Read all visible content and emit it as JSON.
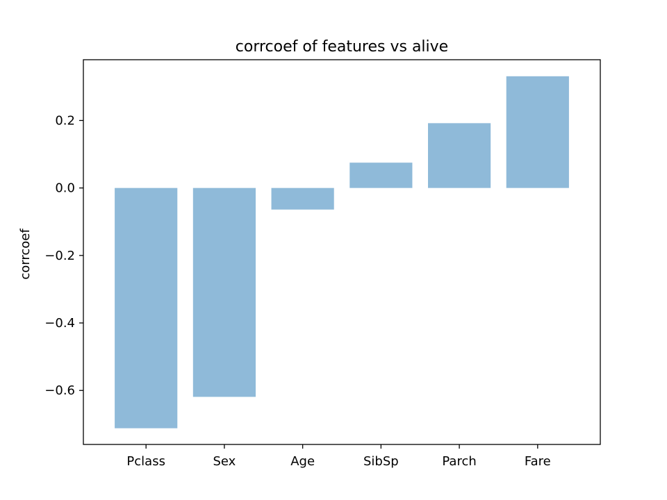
{
  "chart_data": {
    "type": "bar",
    "title": "corrcoef of features vs alive",
    "xlabel": "",
    "ylabel": "corrcoef",
    "categories": [
      "Pclass",
      "Sex",
      "Age",
      "SibSp",
      "Parch",
      "Fare"
    ],
    "values": [
      -0.712,
      -0.619,
      -0.064,
      0.075,
      0.192,
      0.331
    ],
    "ylim": [
      -0.76,
      0.38
    ],
    "yticks": [
      0.2,
      0.0,
      -0.2,
      -0.4,
      -0.6
    ],
    "ytick_labels": [
      "0.2",
      "0.0",
      "−0.2",
      "−0.4",
      "−0.6"
    ],
    "bar_color": "#8fbad9",
    "grid": false,
    "legend": "none"
  }
}
